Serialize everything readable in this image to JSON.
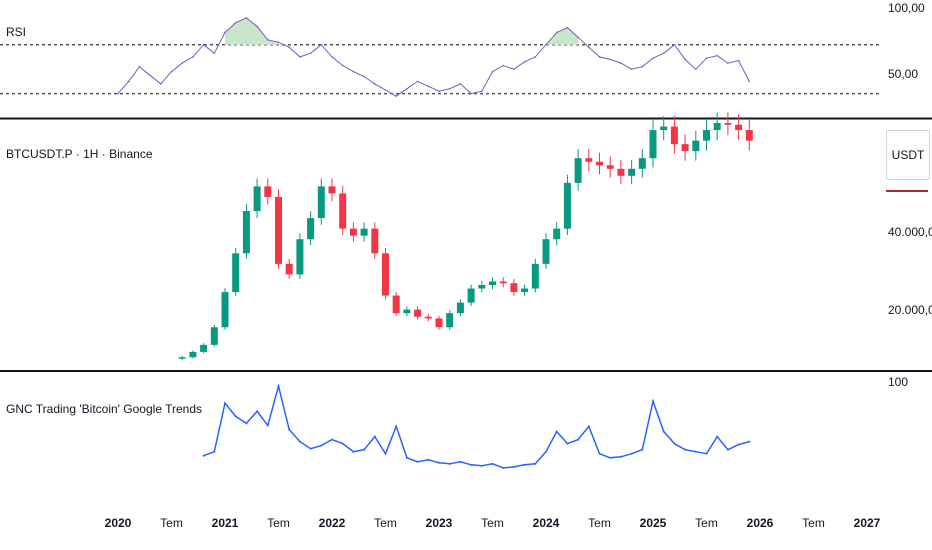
{
  "panes": {
    "rsi": {
      "label": "RSI",
      "scale_labels": [
        "100,00",
        "50,00"
      ]
    },
    "price": {
      "label": "BTCUSDT.P · 1H · Binance",
      "scale_labels": [
        "40.000,0",
        "20.000,0"
      ],
      "currency": "USDT"
    },
    "trends": {
      "label": "GNC Trading 'Bitcoin' Google Trends",
      "scale_labels": [
        "100"
      ]
    }
  },
  "time_axis": [
    {
      "label": "2020",
      "bold": true
    },
    {
      "label": "Tem",
      "bold": false
    },
    {
      "label": "2021",
      "bold": true
    },
    {
      "label": "Tem",
      "bold": false
    },
    {
      "label": "2022",
      "bold": true
    },
    {
      "label": "Tem",
      "bold": false
    },
    {
      "label": "2023",
      "bold": true
    },
    {
      "label": "Tem",
      "bold": false
    },
    {
      "label": "2024",
      "bold": true
    },
    {
      "label": "Tem",
      "bold": false
    },
    {
      "label": "2025",
      "bold": true
    },
    {
      "label": "Tem",
      "bold": false
    },
    {
      "label": "2026",
      "bold": true
    },
    {
      "label": "Tem",
      "bold": false
    },
    {
      "label": "2027",
      "bold": true
    }
  ],
  "colors": {
    "up": "#089981",
    "down": "#f23645",
    "rsi": "#7e57c2",
    "trends": "#2962ff",
    "rsi_fill": "#c8e6c9",
    "axis_text": "#131722",
    "border": "#131722",
    "currency_line": "#b22833"
  },
  "chart_data": [
    {
      "type": "line",
      "pane": "rsi",
      "title": "RSI",
      "xunit": "year",
      "ylim": [
        15,
        100
      ],
      "reference_lines": [
        70,
        30
      ],
      "x": [
        2020.0,
        2020.1,
        2020.2,
        2020.3,
        2020.4,
        2020.5,
        2020.6,
        2020.7,
        2020.8,
        2020.9,
        2021.0,
        2021.1,
        2021.2,
        2021.3,
        2021.4,
        2021.5,
        2021.6,
        2021.7,
        2021.8,
        2021.9,
        2022.0,
        2022.1,
        2022.2,
        2022.3,
        2022.4,
        2022.5,
        2022.6,
        2022.7,
        2022.8,
        2022.9,
        2023.0,
        2023.1,
        2023.2,
        2023.3,
        2023.4,
        2023.5,
        2023.6,
        2023.7,
        2023.8,
        2023.9,
        2024.0,
        2024.1,
        2024.2,
        2024.3,
        2024.4,
        2024.5,
        2024.6,
        2024.7,
        2024.8,
        2024.9,
        2025.0,
        2025.1,
        2025.2,
        2025.3,
        2025.4,
        2025.5,
        2025.6,
        2025.7,
        2025.8,
        2025.9
      ],
      "y": [
        30,
        40,
        52,
        45,
        38,
        48,
        55,
        60,
        70,
        63,
        80,
        88,
        92,
        85,
        74,
        72,
        68,
        60,
        63,
        70,
        60,
        53,
        48,
        44,
        38,
        33,
        28,
        34,
        40,
        36,
        32,
        34,
        38,
        30,
        32,
        48,
        53,
        50,
        56,
        60,
        70,
        80,
        84,
        76,
        68,
        60,
        58,
        55,
        50,
        52,
        59,
        63,
        70,
        58,
        50,
        59,
        61,
        55,
        57,
        40
      ]
    },
    {
      "type": "candlestick",
      "pane": "price",
      "title": "BTCUSDT.P · 1H · Binance",
      "xunit": "year",
      "ylim": [
        6000,
        75000
      ],
      "x": [
        2020.6,
        2020.7,
        2020.8,
        2020.9,
        2021.0,
        2021.1,
        2021.2,
        2021.3,
        2021.4,
        2021.5,
        2021.6,
        2021.7,
        2021.8,
        2021.9,
        2022.0,
        2022.1,
        2022.2,
        2022.3,
        2022.4,
        2022.5,
        2022.6,
        2022.7,
        2022.8,
        2022.9,
        2023.0,
        2023.1,
        2023.2,
        2023.3,
        2023.4,
        2023.5,
        2023.6,
        2023.7,
        2023.8,
        2023.9,
        2024.0,
        2024.1,
        2024.2,
        2024.3,
        2024.4,
        2024.5,
        2024.6,
        2024.7,
        2024.8,
        2024.9,
        2025.0,
        2025.1,
        2025.2,
        2025.3,
        2025.4,
        2025.5,
        2025.6,
        2025.7,
        2025.8,
        2025.9
      ],
      "y": [
        8500,
        10000,
        12000,
        17000,
        27000,
        38000,
        50000,
        57000,
        54000,
        35000,
        32000,
        42000,
        48000,
        57000,
        55000,
        45000,
        43000,
        45000,
        38000,
        26000,
        21000,
        22000,
        20000,
        19500,
        17000,
        21000,
        24000,
        28000,
        29000,
        30000,
        29500,
        27000,
        28000,
        35000,
        42000,
        45000,
        58000,
        65000,
        64000,
        63000,
        62000,
        60000,
        62000,
        65000,
        73000,
        74000,
        69000,
        67000,
        70000,
        73000,
        75000,
        74500,
        73000,
        70000
      ]
    },
    {
      "type": "line",
      "pane": "trends",
      "title": "GNC Trading 'Bitcoin' Google Trends",
      "xunit": "year",
      "ylim": [
        0,
        100
      ],
      "x": [
        2020.8,
        2020.9,
        2021.0,
        2021.1,
        2021.2,
        2021.3,
        2021.4,
        2021.5,
        2021.6,
        2021.7,
        2021.8,
        2021.9,
        2022.0,
        2022.1,
        2022.2,
        2022.3,
        2022.4,
        2022.5,
        2022.6,
        2022.7,
        2022.8,
        2022.9,
        2023.0,
        2023.1,
        2023.2,
        2023.3,
        2023.4,
        2023.5,
        2023.6,
        2023.7,
        2023.8,
        2023.9,
        2024.0,
        2024.1,
        2024.2,
        2024.3,
        2024.4,
        2024.5,
        2024.6,
        2024.7,
        2024.8,
        2024.9,
        2025.0,
        2025.1,
        2025.2,
        2025.3,
        2025.4,
        2025.5,
        2025.6,
        2025.7,
        2025.8,
        2025.9
      ],
      "y": [
        26,
        30,
        78,
        65,
        58,
        70,
        56,
        95,
        52,
        40,
        33,
        36,
        42,
        38,
        30,
        32,
        45,
        28,
        55,
        24,
        20,
        22,
        19,
        18,
        20,
        17,
        16,
        18,
        14,
        15,
        17,
        18,
        30,
        50,
        38,
        42,
        55,
        28,
        24,
        25,
        28,
        32,
        80,
        50,
        38,
        32,
        30,
        28,
        45,
        32,
        37,
        40
      ]
    }
  ]
}
